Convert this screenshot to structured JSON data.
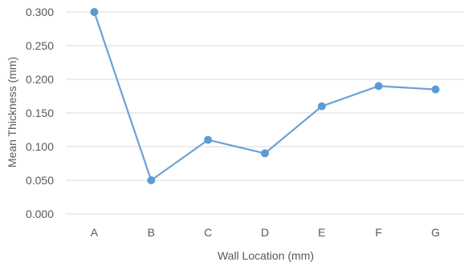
{
  "chart_data": {
    "type": "line",
    "title": "",
    "xlabel": "Wall Location (mm)",
    "ylabel": "Mean Thickness (mm)",
    "categories": [
      "A",
      "B",
      "C",
      "D",
      "E",
      "F",
      "G"
    ],
    "series": [
      {
        "values": [
          0.3,
          0.05,
          0.11,
          0.09,
          0.16,
          0.19,
          0.185
        ]
      }
    ],
    "ylim": [
      0,
      0.3
    ],
    "yticks": [
      "0.000",
      "0.050",
      "0.100",
      "0.150",
      "0.200",
      "0.250",
      "0.300"
    ],
    "grid": true,
    "legend": "none",
    "colors": {
      "line": "#6fa0d4",
      "marker": "#5b9bd5",
      "grid": "#d9d9d9",
      "text": "#595959"
    }
  }
}
